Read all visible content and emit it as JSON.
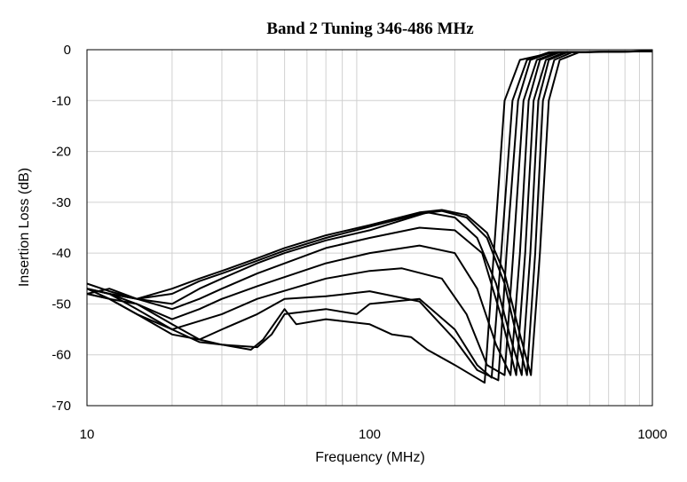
{
  "chart_data": {
    "type": "line",
    "title": "Band 2 Tuning 346-486 MHz",
    "xlabel": "Frequency (MHz)",
    "ylabel": "Insertion Loss (dB)",
    "xscale": "log",
    "xlim": [
      10,
      1000
    ],
    "ylim": [
      -70,
      0
    ],
    "xticks": [
      "10",
      "100",
      "1000"
    ],
    "yticks": [
      "0",
      "-10",
      "-20",
      "-30",
      "-40",
      "-50",
      "-60",
      "-70"
    ],
    "grid": true,
    "legend": "none",
    "line_color": "#000000",
    "grid_color": "#d0d0d0",
    "series": [
      {
        "x": [
          10,
          12,
          15,
          20,
          25,
          30,
          40,
          50,
          70,
          100,
          150,
          180,
          220,
          260,
          300,
          340,
          372,
          400,
          430,
          470,
          550,
          1000
        ],
        "y": [
          -47,
          -48,
          -49,
          -47,
          -45,
          -43.5,
          -41,
          -39,
          -36.5,
          -34.5,
          -32,
          -31.5,
          -32.5,
          -36,
          -44,
          -56,
          -64,
          -40,
          -10,
          -2,
          -0.5,
          -0.3
        ]
      },
      {
        "x": [
          10,
          12,
          15,
          20,
          25,
          30,
          40,
          50,
          70,
          100,
          150,
          180,
          220,
          260,
          300,
          330,
          360,
          385,
          410,
          450,
          520,
          1000
        ],
        "y": [
          -46,
          -47.5,
          -49,
          -48,
          -45.5,
          -44,
          -41.5,
          -39.5,
          -37,
          -34.8,
          -32.3,
          -31.7,
          -33,
          -37,
          -46,
          -56,
          -64,
          -40,
          -10,
          -2,
          -0.5,
          -0.3
        ]
      },
      {
        "x": [
          10,
          12,
          15,
          20,
          25,
          30,
          40,
          50,
          70,
          100,
          160,
          200,
          240,
          280,
          320,
          345,
          370,
          395,
          430,
          500,
          1000
        ],
        "y": [
          -48,
          -47,
          -49,
          -50,
          -47,
          -45,
          -42,
          -40,
          -37.5,
          -35.5,
          -32,
          -33,
          -37,
          -46,
          -58,
          -64,
          -40,
          -10,
          -2,
          -0.5,
          -0.3
        ]
      },
      {
        "x": [
          10,
          12,
          15,
          20,
          25,
          30,
          40,
          70,
          100,
          150,
          200,
          250,
          290,
          330,
          355,
          380,
          420,
          490,
          1000
        ],
        "y": [
          -47,
          -48,
          -49,
          -51,
          -49,
          -47,
          -44,
          -39,
          -37,
          -35,
          -35.5,
          -40,
          -52,
          -64,
          -40,
          -10,
          -2,
          -0.5,
          -0.3
        ]
      },
      {
        "x": [
          10,
          12,
          15,
          20,
          25,
          30,
          40,
          70,
          100,
          150,
          200,
          240,
          280,
          315,
          340,
          365,
          400,
          470,
          1000
        ],
        "y": [
          -48,
          -49,
          -50,
          -53,
          -51,
          -49,
          -46.5,
          -42,
          -40,
          -38.5,
          -40,
          -47,
          -58,
          -64,
          -40,
          -10,
          -2,
          -0.5,
          -0.3
        ]
      },
      {
        "x": [
          10,
          12,
          15,
          20,
          30,
          40,
          70,
          100,
          130,
          180,
          220,
          260,
          300,
          322,
          350,
          390,
          460,
          1000
        ],
        "y": [
          -47,
          -48,
          -51,
          -55,
          -52,
          -49,
          -45,
          -43.5,
          -43,
          -45,
          -52,
          -62,
          -64,
          -40,
          -10,
          -2,
          -0.5,
          -0.3
        ]
      },
      {
        "x": [
          10,
          12,
          15,
          20,
          25,
          30,
          40,
          50,
          70,
          100,
          150,
          200,
          240,
          285,
          305,
          335,
          370,
          440,
          1000
        ],
        "y": [
          -48,
          -49,
          -52,
          -56,
          -57,
          -55,
          -52,
          -49,
          -48.5,
          -47.5,
          -49.5,
          -57,
          -63,
          -65,
          -40,
          -10,
          -2,
          -0.5,
          -0.3
        ]
      },
      {
        "x": [
          10,
          12,
          15,
          20,
          25,
          30,
          40,
          45,
          50,
          70,
          90,
          100,
          150,
          200,
          240,
          270,
          292,
          320,
          360,
          430,
          1000
        ],
        "y": [
          -47,
          -49,
          -52,
          -55,
          -57.5,
          -58,
          -58.5,
          -56,
          -52,
          -51,
          -52,
          -50,
          -49,
          -55,
          -62,
          -64.5,
          -40,
          -10,
          -2,
          -0.5,
          -0.3
        ]
      },
      {
        "x": [
          10,
          12,
          15,
          20,
          25,
          30,
          38,
          42,
          50,
          55,
          70,
          100,
          120,
          140,
          160,
          200,
          255,
          275,
          300,
          340,
          450,
          1000
        ],
        "y": [
          -47,
          -48,
          -50,
          -54,
          -57,
          -58,
          -59,
          -57,
          -51,
          -54,
          -53,
          -54,
          -56,
          -56.5,
          -59,
          -62,
          -65.5,
          -40,
          -10,
          -2,
          -0.5,
          -0.3
        ]
      }
    ]
  }
}
